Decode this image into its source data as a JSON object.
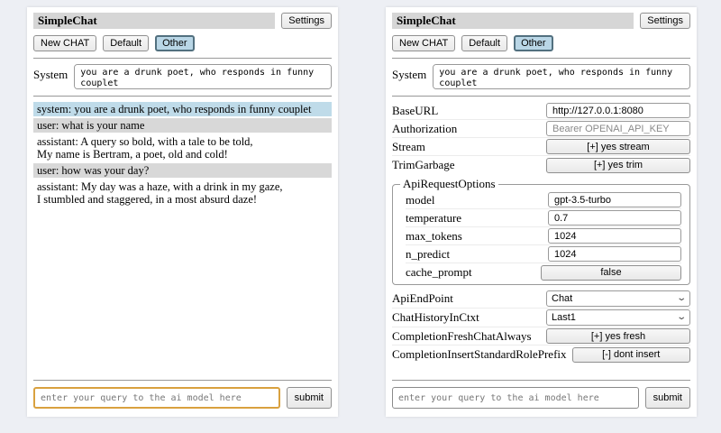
{
  "header": {
    "title": "SimpleChat",
    "settings_button": "Settings",
    "tabs": [
      {
        "label": "New CHAT",
        "selected": false
      },
      {
        "label": "Default",
        "selected": false
      },
      {
        "label": "Other",
        "selected": true
      }
    ]
  },
  "system_prompt": {
    "label": "System",
    "value": "you are a drunk poet, who responds in funny couplet"
  },
  "chat": {
    "messages": [
      {
        "role": "system",
        "text": "system: you are a drunk poet, who responds in funny couplet"
      },
      {
        "role": "user",
        "text": "user: what is your name"
      },
      {
        "role": "assistant",
        "text": "assistant: A query so bold, with a tale to be told,\nMy name is Bertram, a poet, old and cold!"
      },
      {
        "role": "user",
        "text": "user: how was your day?"
      },
      {
        "role": "assistant",
        "text": "assistant: My day was a haze, with a drink in my gaze,\nI stumbled and staggered, in a most absurd daze!"
      }
    ]
  },
  "settings": {
    "rows_top": [
      {
        "label": "BaseURL",
        "type": "input",
        "value": "http://127.0.0.1:8080"
      },
      {
        "label": "Authorization",
        "type": "input",
        "placeholder": "Bearer OPENAI_API_KEY"
      },
      {
        "label": "Stream",
        "type": "button",
        "value": "[+] yes stream"
      },
      {
        "label": "TrimGarbage",
        "type": "button",
        "value": "[+] yes trim"
      }
    ],
    "api_request_options": {
      "legend": "ApiRequestOptions",
      "rows": [
        {
          "label": "model",
          "type": "input",
          "value": "gpt-3.5-turbo"
        },
        {
          "label": "temperature",
          "type": "input",
          "value": "0.7"
        },
        {
          "label": "max_tokens",
          "type": "input",
          "value": "1024"
        },
        {
          "label": "n_predict",
          "type": "input",
          "value": "1024"
        },
        {
          "label": "cache_prompt",
          "type": "button",
          "value": "false"
        }
      ]
    },
    "rows_bottom": [
      {
        "label": "ApiEndPoint",
        "type": "select",
        "value": "Chat"
      },
      {
        "label": "ChatHistoryInCtxt",
        "type": "select",
        "value": "Last1"
      },
      {
        "label": "CompletionFreshChatAlways",
        "type": "button",
        "value": "[+] yes fresh"
      },
      {
        "label": "CompletionInsertStandardRolePrefix",
        "type": "button",
        "value": "[-] dont insert"
      }
    ]
  },
  "query": {
    "placeholder": "enter your query to the ai model here",
    "submit_label": "submit"
  },
  "icons": {
    "chevron_down": "⌄"
  },
  "colors": {
    "page_bg": "#edeff4",
    "panel_bg": "#ffffff",
    "titlebar_bg": "#d6d6d6",
    "tab_selected_bg": "#b9d6e6",
    "tab_selected_border": "#52707f",
    "system_msg_bg": "#bfdbe9",
    "user_msg_bg": "#d8d8d8",
    "focused_input_border": "#d9a13f",
    "button_bg": "#f2f2f2"
  }
}
